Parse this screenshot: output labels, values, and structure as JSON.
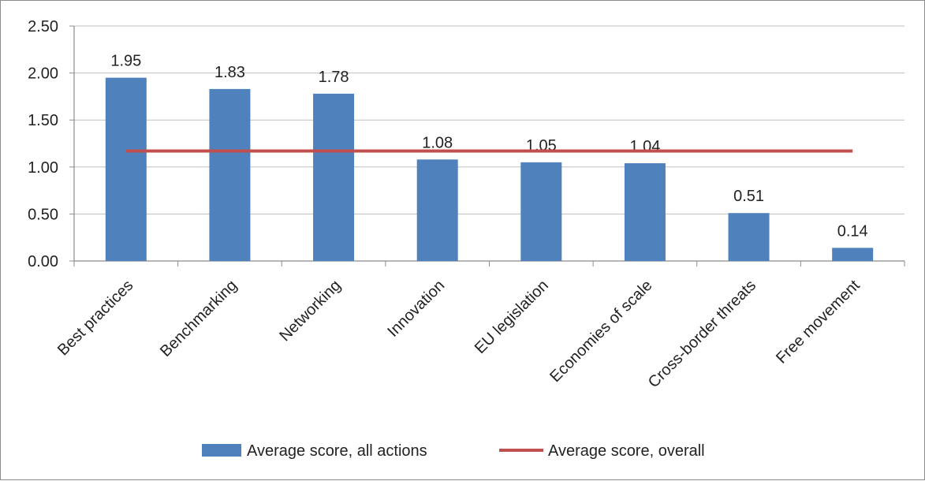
{
  "chart_data": {
    "type": "bar",
    "categories": [
      "Best practices",
      "Benchmarking",
      "Networking",
      "Innovation",
      "EU legislation",
      "Economies of scale",
      "Cross-border threats",
      "Free movement"
    ],
    "series": [
      {
        "name": "Average score, all actions",
        "type": "bar",
        "color": "#4f81bd",
        "values": [
          1.95,
          1.83,
          1.78,
          1.08,
          1.05,
          1.04,
          0.51,
          0.14
        ],
        "labels": [
          "1.95",
          "1.83",
          "1.78",
          "1.08",
          "1.05",
          "1.04",
          "0.51",
          "0.14"
        ]
      },
      {
        "name": "Average score, overall",
        "type": "line",
        "color": "#c0504d",
        "values": [
          1.17,
          1.17,
          1.17,
          1.17,
          1.17,
          1.17,
          1.17,
          1.17
        ]
      }
    ],
    "y_ticks": [
      "0.00",
      "0.50",
      "1.00",
      "1.50",
      "2.00",
      "2.50"
    ],
    "ylim": [
      0,
      2.5
    ],
    "grid": true,
    "legend_position": "bottom"
  }
}
